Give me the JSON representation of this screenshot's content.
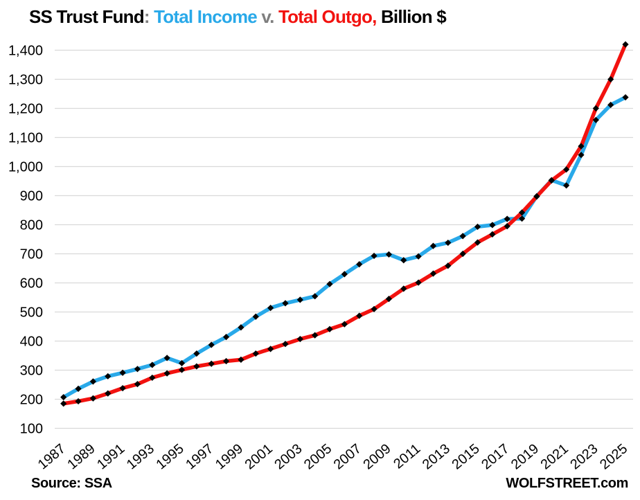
{
  "title": {
    "segments": [
      {
        "text": "SS Trust Fund",
        "color": "#000000"
      },
      {
        "text": ": ",
        "color": "#7F7F7F"
      },
      {
        "text": "Total Income ",
        "color": "#29A9E9"
      },
      {
        "text": "v. ",
        "color": "#7F7F7F"
      },
      {
        "text": "Total Outgo,",
        "color": "#F2120F"
      },
      {
        "text": " Billion $",
        "color": "#000000"
      }
    ]
  },
  "footer": {
    "source": "Source: SSA",
    "brand": "WOLFSTREET.com"
  },
  "chart_data": {
    "type": "line",
    "title": "SS Trust Fund: Total Income v. Total Outgo, Billion $",
    "xlabel": "",
    "ylabel": "",
    "ylim": [
      100,
      1400
    ],
    "ytick_step": 100,
    "grid": "horizontal-only",
    "gridline_color": "#D9D9D9",
    "marker": "black-diamond",
    "marker_color": "#000000",
    "legend_position": "in-title",
    "x": [
      1987,
      1988,
      1989,
      1990,
      1991,
      1992,
      1993,
      1994,
      1995,
      1996,
      1997,
      1998,
      1999,
      2000,
      2001,
      2002,
      2003,
      2004,
      2005,
      2006,
      2007,
      2008,
      2009,
      2010,
      2011,
      2012,
      2013,
      2014,
      2015,
      2016,
      2017,
      2018,
      2019,
      2020,
      2021,
      2022,
      2023,
      2024,
      2025
    ],
    "xtick_years": [
      1987,
      1989,
      1991,
      1993,
      1995,
      1997,
      1999,
      2001,
      2003,
      2005,
      2007,
      2009,
      2011,
      2013,
      2015,
      2017,
      2019,
      2021,
      2023,
      2025
    ],
    "series": [
      {
        "name": "Total Income",
        "color": "#29A9E9",
        "values": [
          207,
          236,
          261,
          279,
          291,
          304,
          318,
          342,
          324,
          357,
          387,
          414,
          447,
          484,
          514,
          530,
          542,
          554,
          596,
          630,
          664,
          693,
          698,
          678,
          691,
          727,
          738,
          761,
          793,
          799,
          820,
          821,
          898,
          953,
          935,
          1040,
          1160,
          1212,
          1238
        ]
      },
      {
        "name": "Total Outgo",
        "color": "#F2120F",
        "values": [
          185,
          193,
          203,
          220,
          238,
          252,
          274,
          289,
          301,
          313,
          322,
          331,
          336,
          357,
          373,
          390,
          407,
          420,
          441,
          458,
          487,
          510,
          545,
          580,
          601,
          632,
          659,
          700,
          739,
          767,
          795,
          842,
          897,
          952,
          990,
          1070,
          1200,
          1300,
          1420
        ]
      }
    ]
  }
}
